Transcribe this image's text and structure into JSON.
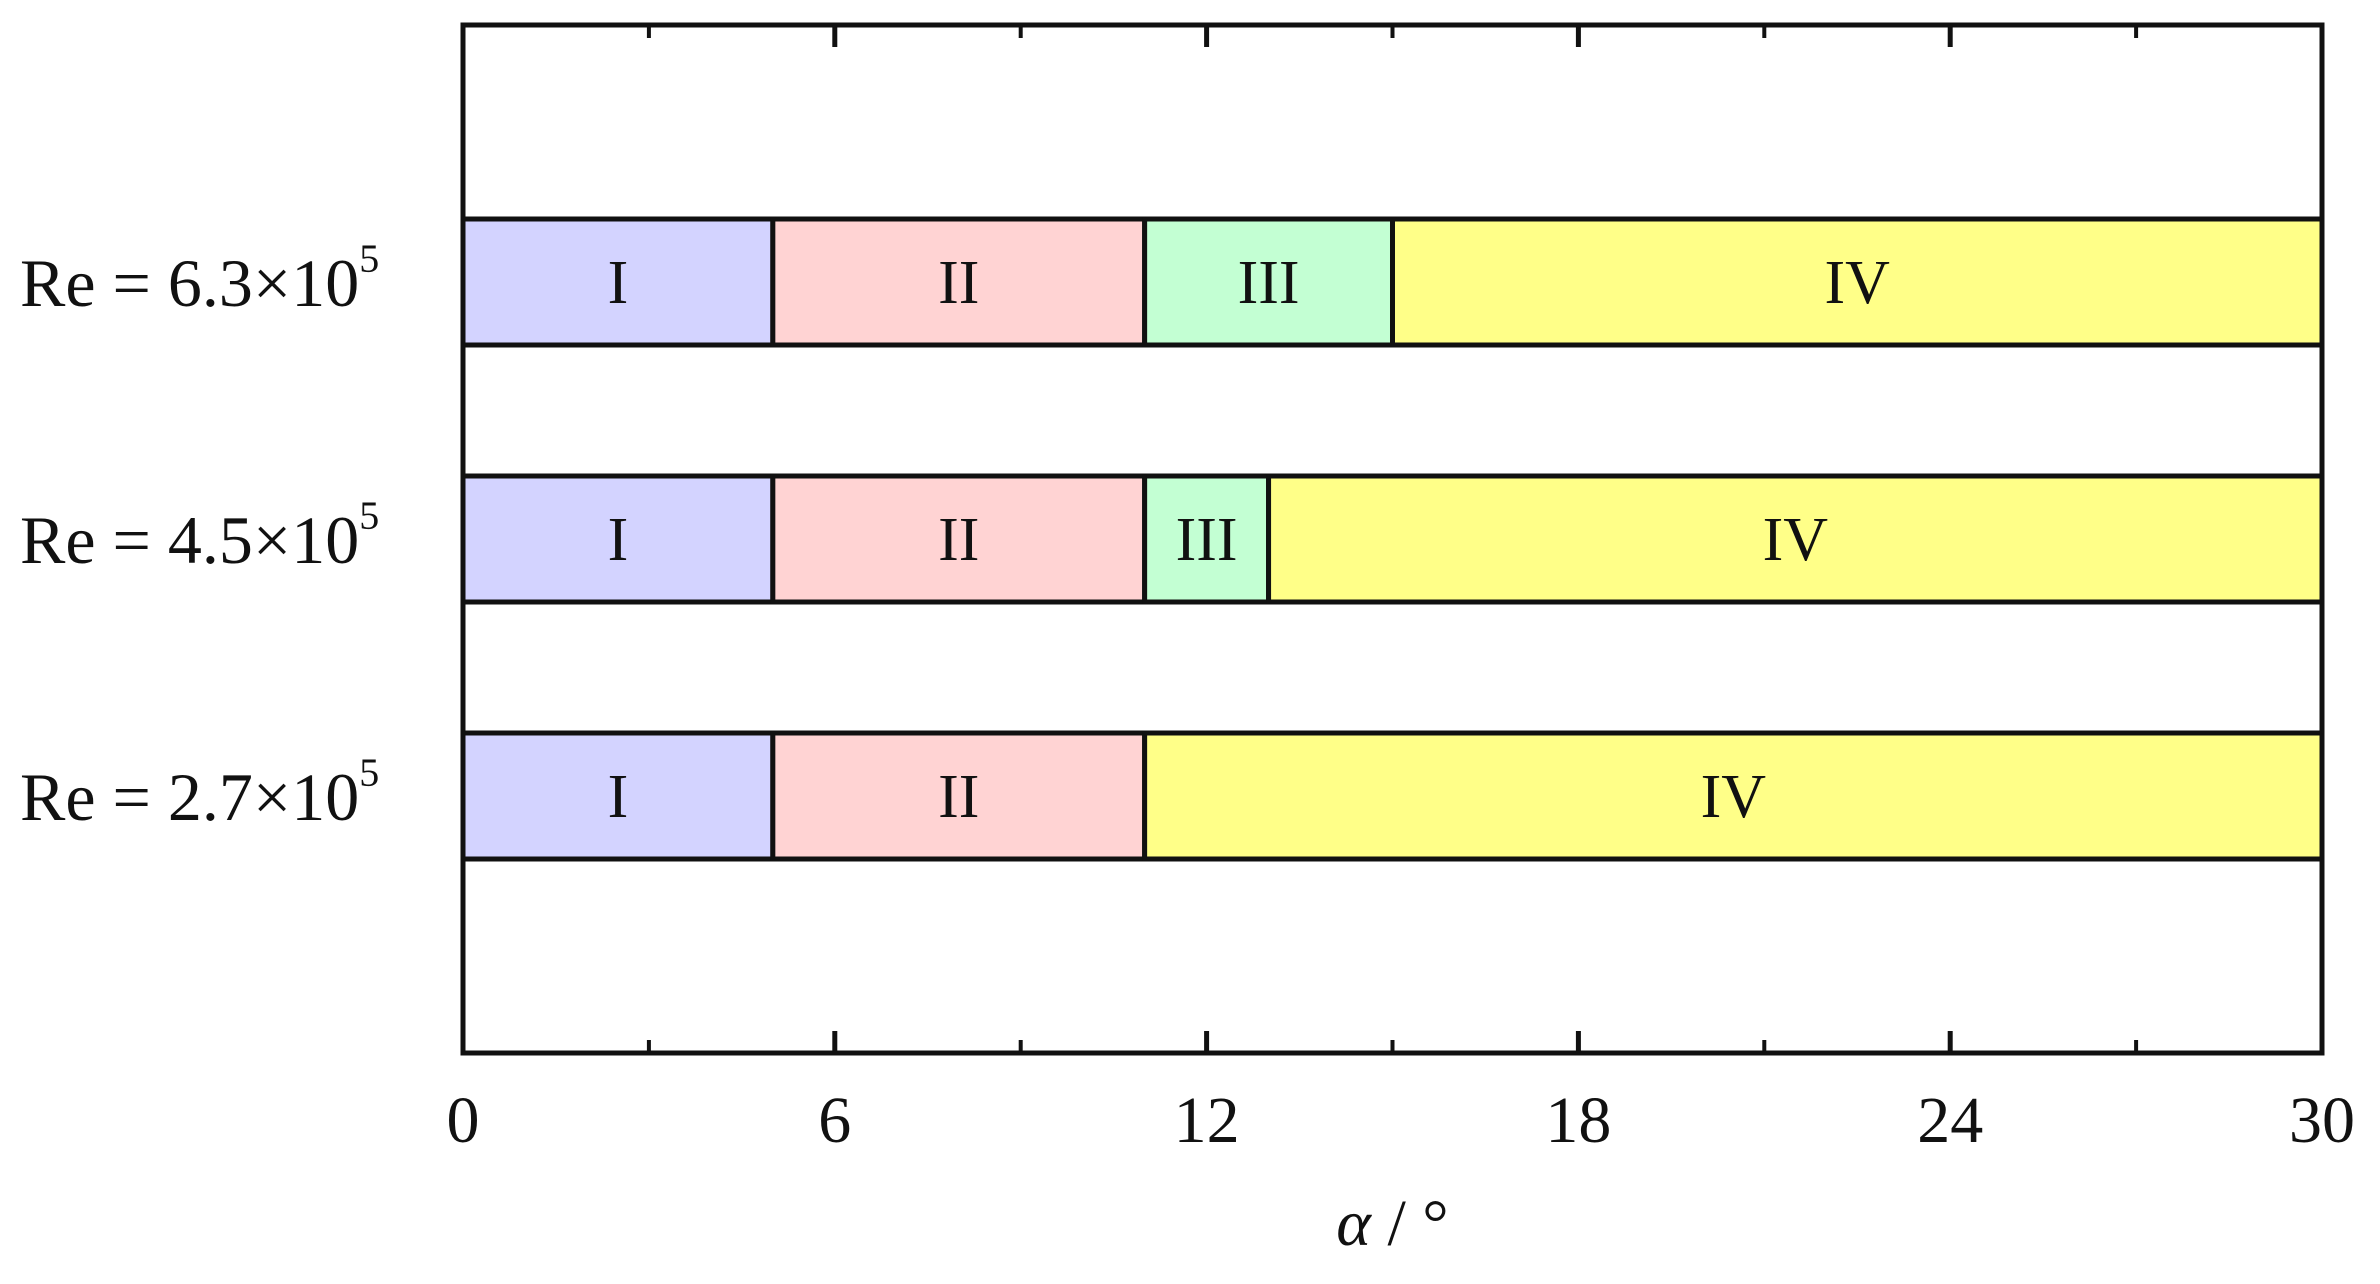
{
  "chart_data": {
    "type": "bar",
    "orientation": "horizontal-stacked",
    "title": "",
    "xlabel": "α / °",
    "xlabel_parts": {
      "symbol": "α",
      "unit": "°"
    },
    "ylabel": "",
    "xlim": [
      0,
      30
    ],
    "x_ticks": [
      0,
      6,
      12,
      18,
      24,
      30
    ],
    "x_minor_ticks": [
      3,
      9,
      15,
      21,
      27
    ],
    "grid": false,
    "legend": "none",
    "colors": {
      "I": "#d3d3ff",
      "II": "#ffd3d3",
      "III": "#c3ffd3",
      "IV": "#ffff88",
      "border": "#111111"
    },
    "rows": [
      {
        "label": "Re = 6.3×10",
        "exponent": "5",
        "segments": [
          {
            "name": "I",
            "start": 0,
            "end": 5
          },
          {
            "name": "II",
            "start": 5,
            "end": 11
          },
          {
            "name": "III",
            "start": 11,
            "end": 15
          },
          {
            "name": "IV",
            "start": 15,
            "end": 30
          }
        ]
      },
      {
        "label": "Re = 4.5×10",
        "exponent": "5",
        "segments": [
          {
            "name": "I",
            "start": 0,
            "end": 5
          },
          {
            "name": "II",
            "start": 5,
            "end": 11
          },
          {
            "name": "III",
            "start": 11,
            "end": 13
          },
          {
            "name": "IV",
            "start": 13,
            "end": 30
          }
        ]
      },
      {
        "label": "Re = 2.7×10",
        "exponent": "5",
        "segments": [
          {
            "name": "I",
            "start": 0,
            "end": 5
          },
          {
            "name": "II",
            "start": 5,
            "end": 11
          },
          {
            "name": "IV",
            "start": 11,
            "end": 30
          }
        ]
      }
    ]
  }
}
